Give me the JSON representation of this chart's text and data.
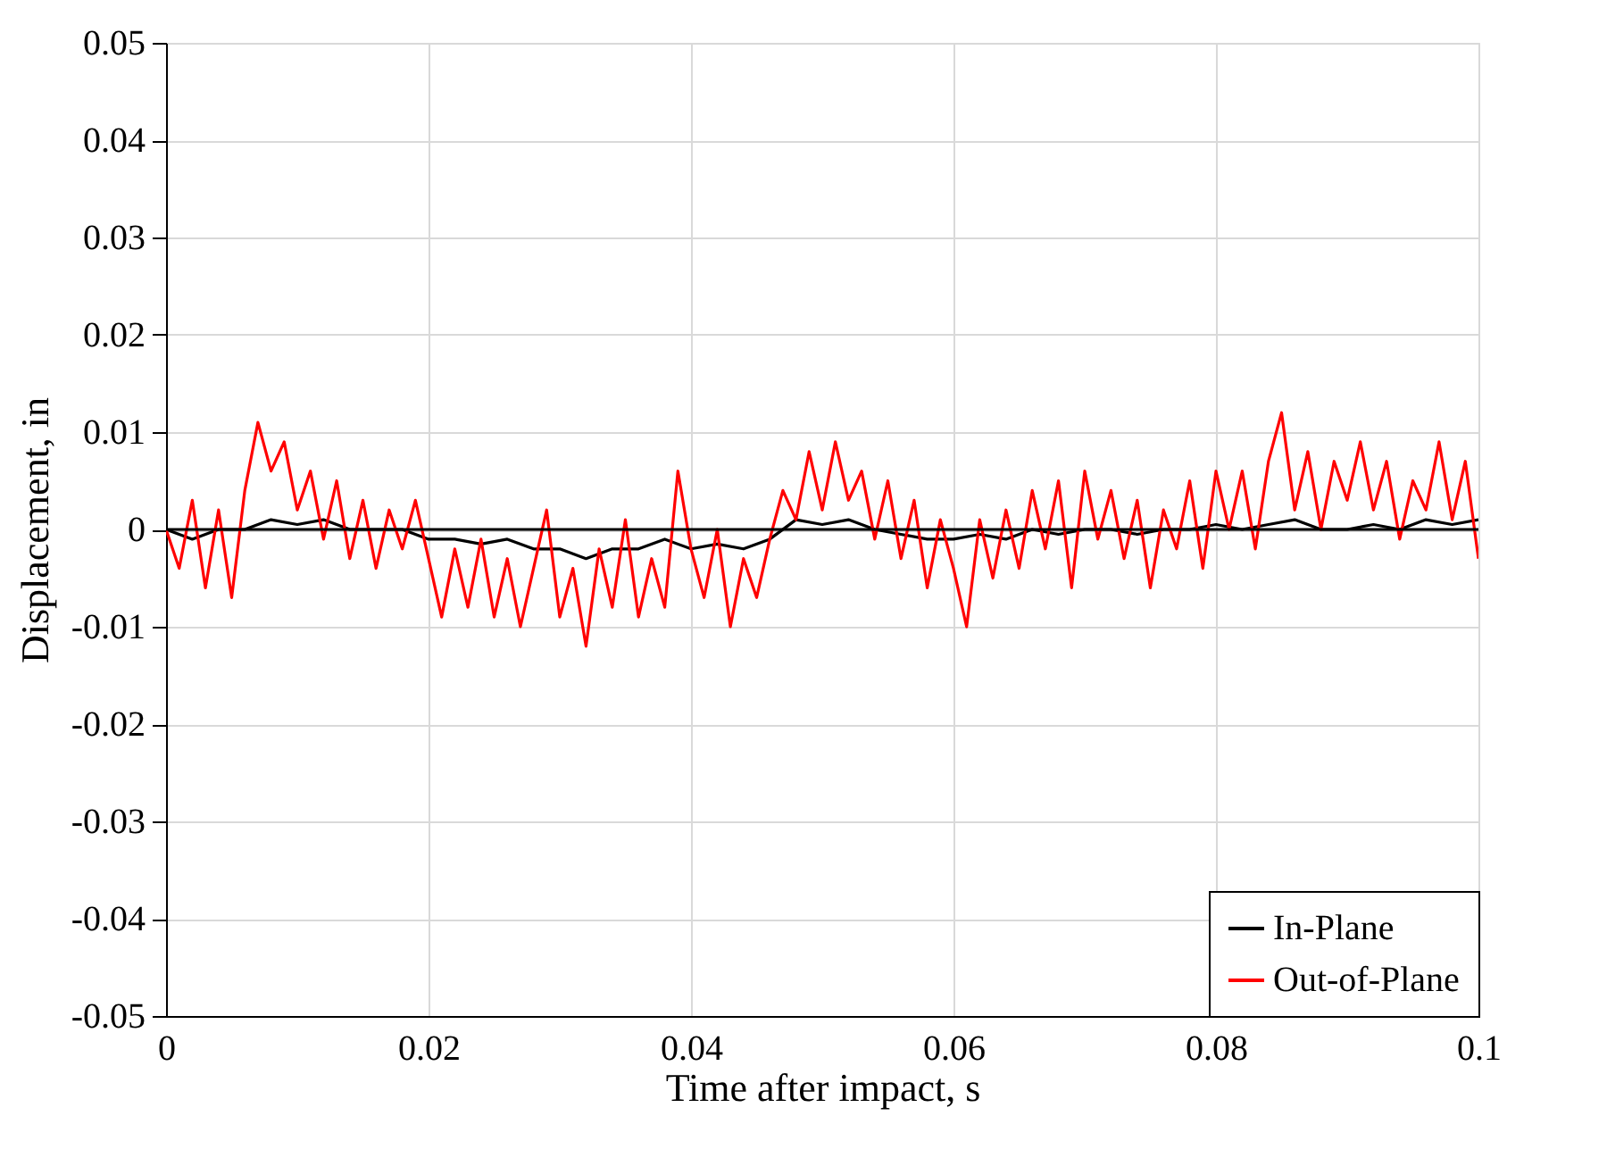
{
  "chart_data": {
    "type": "line",
    "xlabel": "Time after impact, s",
    "ylabel": "Displacement, in",
    "xlim": [
      0,
      0.1
    ],
    "xticks": [
      0,
      0.02,
      0.04,
      0.06,
      0.08,
      0.1
    ],
    "ylim": [
      -0.05,
      0.05
    ],
    "yticks": [
      -0.05,
      -0.04,
      -0.03,
      -0.02,
      -0.01,
      0,
      0.01,
      0.02,
      0.03,
      0.04,
      0.05
    ],
    "grid": true,
    "legend": "bottom right",
    "line_style": "solid",
    "marker": "none",
    "ref_lines": [
      {
        "axis": "y",
        "value": 0,
        "color": "#000000"
      }
    ],
    "series": [
      {
        "name": "In-Plane",
        "color": "#000000",
        "x": [
          0,
          0.002,
          0.004,
          0.006,
          0.008,
          0.01,
          0.012,
          0.014,
          0.016,
          0.018,
          0.02,
          0.022,
          0.024,
          0.026,
          0.028,
          0.03,
          0.032,
          0.034,
          0.036,
          0.038,
          0.04,
          0.042,
          0.044,
          0.046,
          0.048,
          0.05,
          0.052,
          0.054,
          0.056,
          0.058,
          0.06,
          0.062,
          0.064,
          0.066,
          0.068,
          0.07,
          0.072,
          0.074,
          0.076,
          0.078,
          0.08,
          0.082,
          0.084,
          0.086,
          0.088,
          0.09,
          0.092,
          0.094,
          0.096,
          0.098,
          0.1
        ],
        "values": [
          0,
          -0.001,
          0,
          0,
          0.001,
          0.0005,
          0.001,
          0,
          0,
          0,
          -0.001,
          -0.001,
          -0.0015,
          -0.001,
          -0.002,
          -0.002,
          -0.003,
          -0.002,
          -0.002,
          -0.001,
          -0.002,
          -0.0015,
          -0.002,
          -0.001,
          0.001,
          0.0005,
          0.001,
          0,
          -0.0005,
          -0.001,
          -0.001,
          -0.0005,
          -0.001,
          0,
          -0.0005,
          0,
          0,
          -0.0005,
          0,
          0,
          0.0005,
          0,
          0.0005,
          0.001,
          0,
          0,
          0.0005,
          0,
          0.001,
          0.0005,
          0.001
        ]
      },
      {
        "name": "Out-of-Plane",
        "color": "#ff0000",
        "x": [
          0,
          0.001,
          0.002,
          0.003,
          0.004,
          0.005,
          0.006,
          0.007,
          0.008,
          0.009,
          0.01,
          0.011,
          0.012,
          0.013,
          0.014,
          0.015,
          0.016,
          0.017,
          0.018,
          0.019,
          0.02,
          0.021,
          0.022,
          0.023,
          0.024,
          0.025,
          0.026,
          0.027,
          0.028,
          0.029,
          0.03,
          0.031,
          0.032,
          0.033,
          0.034,
          0.035,
          0.036,
          0.037,
          0.038,
          0.039,
          0.04,
          0.041,
          0.042,
          0.043,
          0.044,
          0.045,
          0.046,
          0.047,
          0.048,
          0.049,
          0.05,
          0.051,
          0.052,
          0.053,
          0.054,
          0.055,
          0.056,
          0.057,
          0.058,
          0.059,
          0.06,
          0.061,
          0.062,
          0.063,
          0.064,
          0.065,
          0.066,
          0.067,
          0.068,
          0.069,
          0.07,
          0.071,
          0.072,
          0.073,
          0.074,
          0.075,
          0.076,
          0.077,
          0.078,
          0.079,
          0.08,
          0.081,
          0.082,
          0.083,
          0.084,
          0.085,
          0.086,
          0.087,
          0.088,
          0.089,
          0.09,
          0.091,
          0.092,
          0.093,
          0.094,
          0.095,
          0.096,
          0.097,
          0.098,
          0.099,
          0.1
        ],
        "values": [
          0,
          -0.004,
          0.003,
          -0.006,
          0.002,
          -0.007,
          0.004,
          0.011,
          0.006,
          0.009,
          0.002,
          0.006,
          -0.001,
          0.005,
          -0.003,
          0.003,
          -0.004,
          0.002,
          -0.002,
          0.003,
          -0.003,
          -0.009,
          -0.002,
          -0.008,
          -0.001,
          -0.009,
          -0.003,
          -0.01,
          -0.004,
          0.002,
          -0.009,
          -0.004,
          -0.012,
          -0.002,
          -0.008,
          0.001,
          -0.009,
          -0.003,
          -0.008,
          0.006,
          -0.002,
          -0.007,
          0,
          -0.01,
          -0.003,
          -0.007,
          -0.001,
          0.004,
          0.001,
          0.008,
          0.002,
          0.009,
          0.003,
          0.006,
          -0.001,
          0.005,
          -0.003,
          0.003,
          -0.006,
          0.001,
          -0.004,
          -0.01,
          0.001,
          -0.005,
          0.002,
          -0.004,
          0.004,
          -0.002,
          0.005,
          -0.006,
          0.006,
          -0.001,
          0.004,
          -0.003,
          0.003,
          -0.006,
          0.002,
          -0.002,
          0.005,
          -0.004,
          0.006,
          0,
          0.006,
          -0.002,
          0.007,
          0.012,
          0.002,
          0.008,
          0,
          0.007,
          0.003,
          0.009,
          0.002,
          0.007,
          -0.001,
          0.005,
          0.002,
          0.009,
          0.001,
          0.007,
          -0.003
        ]
      }
    ]
  }
}
